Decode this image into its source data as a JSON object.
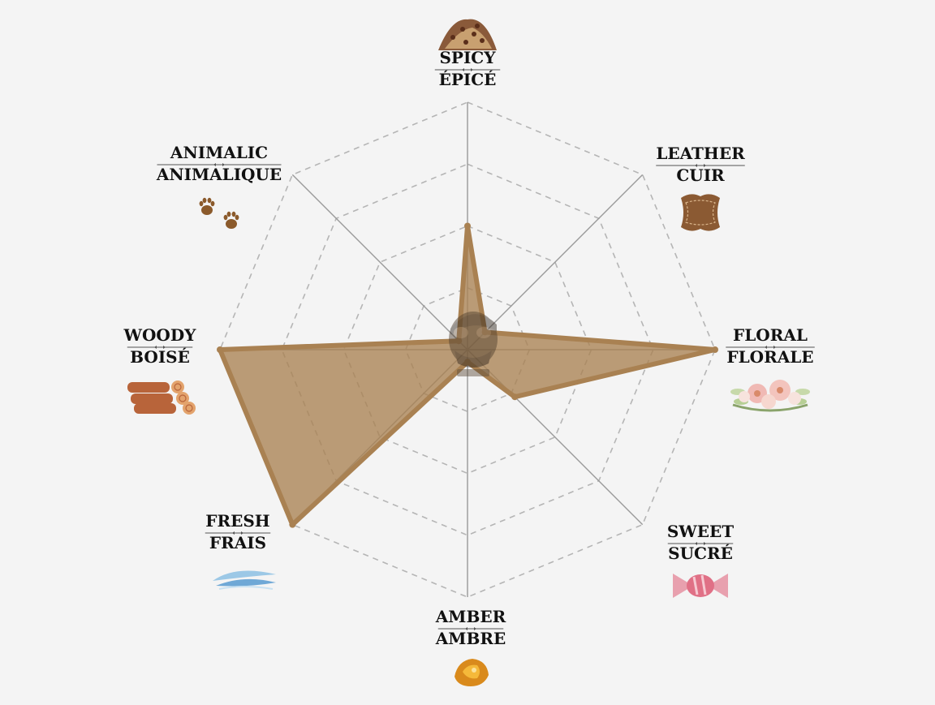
{
  "chart_data": {
    "type": "radar",
    "axes": [
      {
        "label_en": "SPICY",
        "label_fr": "ÉPICÉ",
        "icon": "spice-pile-icon",
        "value": 0.5
      },
      {
        "label_en": "LEATHER",
        "label_fr": "CUIR",
        "icon": "leather-hide-icon",
        "value": 0.1
      },
      {
        "label_en": "FLORAL",
        "label_fr": "FLORALE",
        "icon": "flower-bouquet-icon",
        "value": 1.0
      },
      {
        "label_en": "SWEET",
        "label_fr": "SUCRÉ",
        "icon": "candy-icon",
        "value": 0.27
      },
      {
        "label_en": "AMBER",
        "label_fr": "AMBRE",
        "icon": "amber-stone-icon",
        "value": 0.05
      },
      {
        "label_en": "FRESH",
        "label_fr": "FRAIS",
        "icon": "wind-swirl-icon",
        "value": 1.0
      },
      {
        "label_en": "WOODY",
        "label_fr": "BOISÉ",
        "icon": "wood-logs-icon",
        "value": 1.0
      },
      {
        "label_en": "ANIMALIC",
        "label_fr": "ANIMALIQUE",
        "icon": "paw-prints-icon",
        "value": 0.05
      }
    ],
    "scale": [
      0,
      1
    ],
    "rings": 4,
    "grid": true,
    "colors": {
      "fill": "#a98152",
      "stroke": "#a98152",
      "axis": "#9a9a9a",
      "ring": "#b5b5b5",
      "background": "#f4f4f4"
    },
    "center_logo": "goggled-head-logo-icon"
  }
}
